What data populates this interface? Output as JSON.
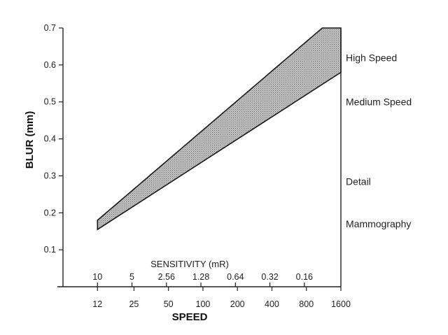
{
  "chart_data": {
    "type": "area",
    "ylabel": "BLUR (mm)",
    "xlabel": "SPEED",
    "secondary_xlabel": "SENSITIVITY (mR)",
    "yticks": [
      "0.1",
      "0.2",
      "0.3",
      "0.4",
      "0.5",
      "0.6",
      "0.7"
    ],
    "ylim": [
      0.0,
      0.7
    ],
    "x_scale": "log",
    "xlim": [
      6,
      1600
    ],
    "speed_ticks": [
      "12",
      "25",
      "50",
      "100",
      "200",
      "400",
      "800",
      "1600"
    ],
    "sensitivity_ticks": [
      "10",
      "5",
      "2.56",
      "1.28",
      "0.64",
      "0.32",
      "0.16"
    ],
    "band": {
      "upper": [
        [
          12,
          0.18
        ],
        [
          1100,
          0.7
        ],
        [
          1600,
          0.7
        ]
      ],
      "lower": [
        [
          12,
          0.155
        ],
        [
          1600,
          0.58
        ]
      ]
    },
    "categories": [
      {
        "label": "High Speed",
        "y": 0.62
      },
      {
        "label": "Medium Speed",
        "y": 0.5
      },
      {
        "label": "Detail",
        "y": 0.285
      },
      {
        "label": "Mammography",
        "y": 0.17
      }
    ],
    "grid": false,
    "colors": {
      "band_fill": "#a9a9a9",
      "band_stroke": "#1a1a1a",
      "text": "#222222"
    }
  }
}
